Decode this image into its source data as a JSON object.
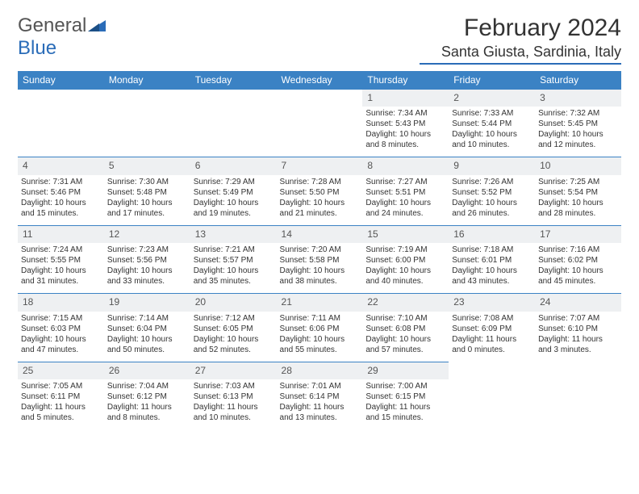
{
  "brand": {
    "part1": "General",
    "part2": "Blue"
  },
  "title": "February 2024",
  "location": "Santa Giusta, Sardinia, Italy",
  "weekdays": [
    "Sunday",
    "Monday",
    "Tuesday",
    "Wednesday",
    "Thursday",
    "Friday",
    "Saturday"
  ],
  "colors": {
    "header_bg": "#3b82c4",
    "header_text": "#ffffff",
    "daynum_bg": "#eef0f2",
    "row_border": "#3b82c4",
    "page_bg": "#ffffff",
    "text": "#333333"
  },
  "typography": {
    "title_fontsize": 30,
    "location_fontsize": 18,
    "weekday_fontsize": 12,
    "daynum_fontsize": 12,
    "body_fontsize": 10
  },
  "layout": {
    "cols": 7,
    "rows": 5,
    "first_weekday_index": 4,
    "days_in_month": 29
  },
  "days": [
    {
      "n": 1,
      "sunrise": "7:34 AM",
      "sunset": "5:43 PM",
      "daylight": "10 hours and 8 minutes."
    },
    {
      "n": 2,
      "sunrise": "7:33 AM",
      "sunset": "5:44 PM",
      "daylight": "10 hours and 10 minutes."
    },
    {
      "n": 3,
      "sunrise": "7:32 AM",
      "sunset": "5:45 PM",
      "daylight": "10 hours and 12 minutes."
    },
    {
      "n": 4,
      "sunrise": "7:31 AM",
      "sunset": "5:46 PM",
      "daylight": "10 hours and 15 minutes."
    },
    {
      "n": 5,
      "sunrise": "7:30 AM",
      "sunset": "5:48 PM",
      "daylight": "10 hours and 17 minutes."
    },
    {
      "n": 6,
      "sunrise": "7:29 AM",
      "sunset": "5:49 PM",
      "daylight": "10 hours and 19 minutes."
    },
    {
      "n": 7,
      "sunrise": "7:28 AM",
      "sunset": "5:50 PM",
      "daylight": "10 hours and 21 minutes."
    },
    {
      "n": 8,
      "sunrise": "7:27 AM",
      "sunset": "5:51 PM",
      "daylight": "10 hours and 24 minutes."
    },
    {
      "n": 9,
      "sunrise": "7:26 AM",
      "sunset": "5:52 PM",
      "daylight": "10 hours and 26 minutes."
    },
    {
      "n": 10,
      "sunrise": "7:25 AM",
      "sunset": "5:54 PM",
      "daylight": "10 hours and 28 minutes."
    },
    {
      "n": 11,
      "sunrise": "7:24 AM",
      "sunset": "5:55 PM",
      "daylight": "10 hours and 31 minutes."
    },
    {
      "n": 12,
      "sunrise": "7:23 AM",
      "sunset": "5:56 PM",
      "daylight": "10 hours and 33 minutes."
    },
    {
      "n": 13,
      "sunrise": "7:21 AM",
      "sunset": "5:57 PM",
      "daylight": "10 hours and 35 minutes."
    },
    {
      "n": 14,
      "sunrise": "7:20 AM",
      "sunset": "5:58 PM",
      "daylight": "10 hours and 38 minutes."
    },
    {
      "n": 15,
      "sunrise": "7:19 AM",
      "sunset": "6:00 PM",
      "daylight": "10 hours and 40 minutes."
    },
    {
      "n": 16,
      "sunrise": "7:18 AM",
      "sunset": "6:01 PM",
      "daylight": "10 hours and 43 minutes."
    },
    {
      "n": 17,
      "sunrise": "7:16 AM",
      "sunset": "6:02 PM",
      "daylight": "10 hours and 45 minutes."
    },
    {
      "n": 18,
      "sunrise": "7:15 AM",
      "sunset": "6:03 PM",
      "daylight": "10 hours and 47 minutes."
    },
    {
      "n": 19,
      "sunrise": "7:14 AM",
      "sunset": "6:04 PM",
      "daylight": "10 hours and 50 minutes."
    },
    {
      "n": 20,
      "sunrise": "7:12 AM",
      "sunset": "6:05 PM",
      "daylight": "10 hours and 52 minutes."
    },
    {
      "n": 21,
      "sunrise": "7:11 AM",
      "sunset": "6:06 PM",
      "daylight": "10 hours and 55 minutes."
    },
    {
      "n": 22,
      "sunrise": "7:10 AM",
      "sunset": "6:08 PM",
      "daylight": "10 hours and 57 minutes."
    },
    {
      "n": 23,
      "sunrise": "7:08 AM",
      "sunset": "6:09 PM",
      "daylight": "11 hours and 0 minutes."
    },
    {
      "n": 24,
      "sunrise": "7:07 AM",
      "sunset": "6:10 PM",
      "daylight": "11 hours and 3 minutes."
    },
    {
      "n": 25,
      "sunrise": "7:05 AM",
      "sunset": "6:11 PM",
      "daylight": "11 hours and 5 minutes."
    },
    {
      "n": 26,
      "sunrise": "7:04 AM",
      "sunset": "6:12 PM",
      "daylight": "11 hours and 8 minutes."
    },
    {
      "n": 27,
      "sunrise": "7:03 AM",
      "sunset": "6:13 PM",
      "daylight": "11 hours and 10 minutes."
    },
    {
      "n": 28,
      "sunrise": "7:01 AM",
      "sunset": "6:14 PM",
      "daylight": "11 hours and 13 minutes."
    },
    {
      "n": 29,
      "sunrise": "7:00 AM",
      "sunset": "6:15 PM",
      "daylight": "11 hours and 15 minutes."
    }
  ],
  "labels": {
    "sunrise": "Sunrise:",
    "sunset": "Sunset:",
    "daylight": "Daylight:"
  }
}
